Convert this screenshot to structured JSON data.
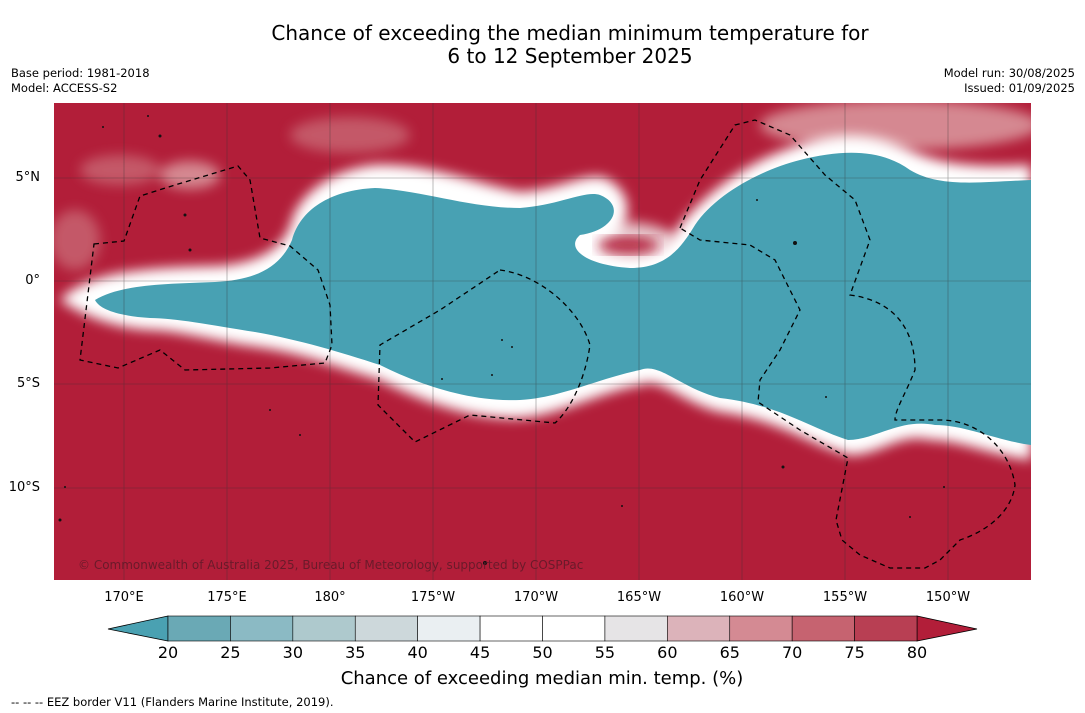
{
  "title": {
    "line1": "Chance of exceeding the median minimum temperature for",
    "line2": "6 to 12 September 2025"
  },
  "meta": {
    "base_period": "Base period: 1981-2018",
    "model": "Model: ACCESS-S2",
    "model_run": "Model run: 30/08/2025",
    "issued": "Issued: 01/09/2025"
  },
  "map": {
    "latitude_labels": [
      "5°N",
      "0°",
      "5°S",
      "10°S"
    ],
    "longitude_labels": [
      "170°E",
      "175°E",
      "180°",
      "175°W",
      "170°W",
      "165°W",
      "160°W",
      "155°W",
      "150°W"
    ],
    "copyright": "© Commonwealth of Australia 2025, Bureau of Meteorology, supported by COSPPac",
    "colors": {
      "above": "#b21e39",
      "below": "#48a1b3",
      "neutral": "#ffffff"
    }
  },
  "colorbar": {
    "ticks": [
      "20",
      "25",
      "30",
      "35",
      "40",
      "45",
      "50",
      "55",
      "60",
      "65",
      "70",
      "75",
      "80"
    ],
    "colors": [
      "#4aa1b2",
      "#6aa9b5",
      "#8bbac4",
      "#aec9cd",
      "#cdd8db",
      "#eaeff2",
      "#ffffff",
      "#ffffff",
      "#e6e4e6",
      "#dcb3ba",
      "#d48a93",
      "#c66370",
      "#b83f53",
      "#b21e39"
    ],
    "title": "Chance of exceeding median min. temp. (%)"
  },
  "footnote": "--  --  -- EEZ border V11 (Flanders Marine Institute, 2019)."
}
